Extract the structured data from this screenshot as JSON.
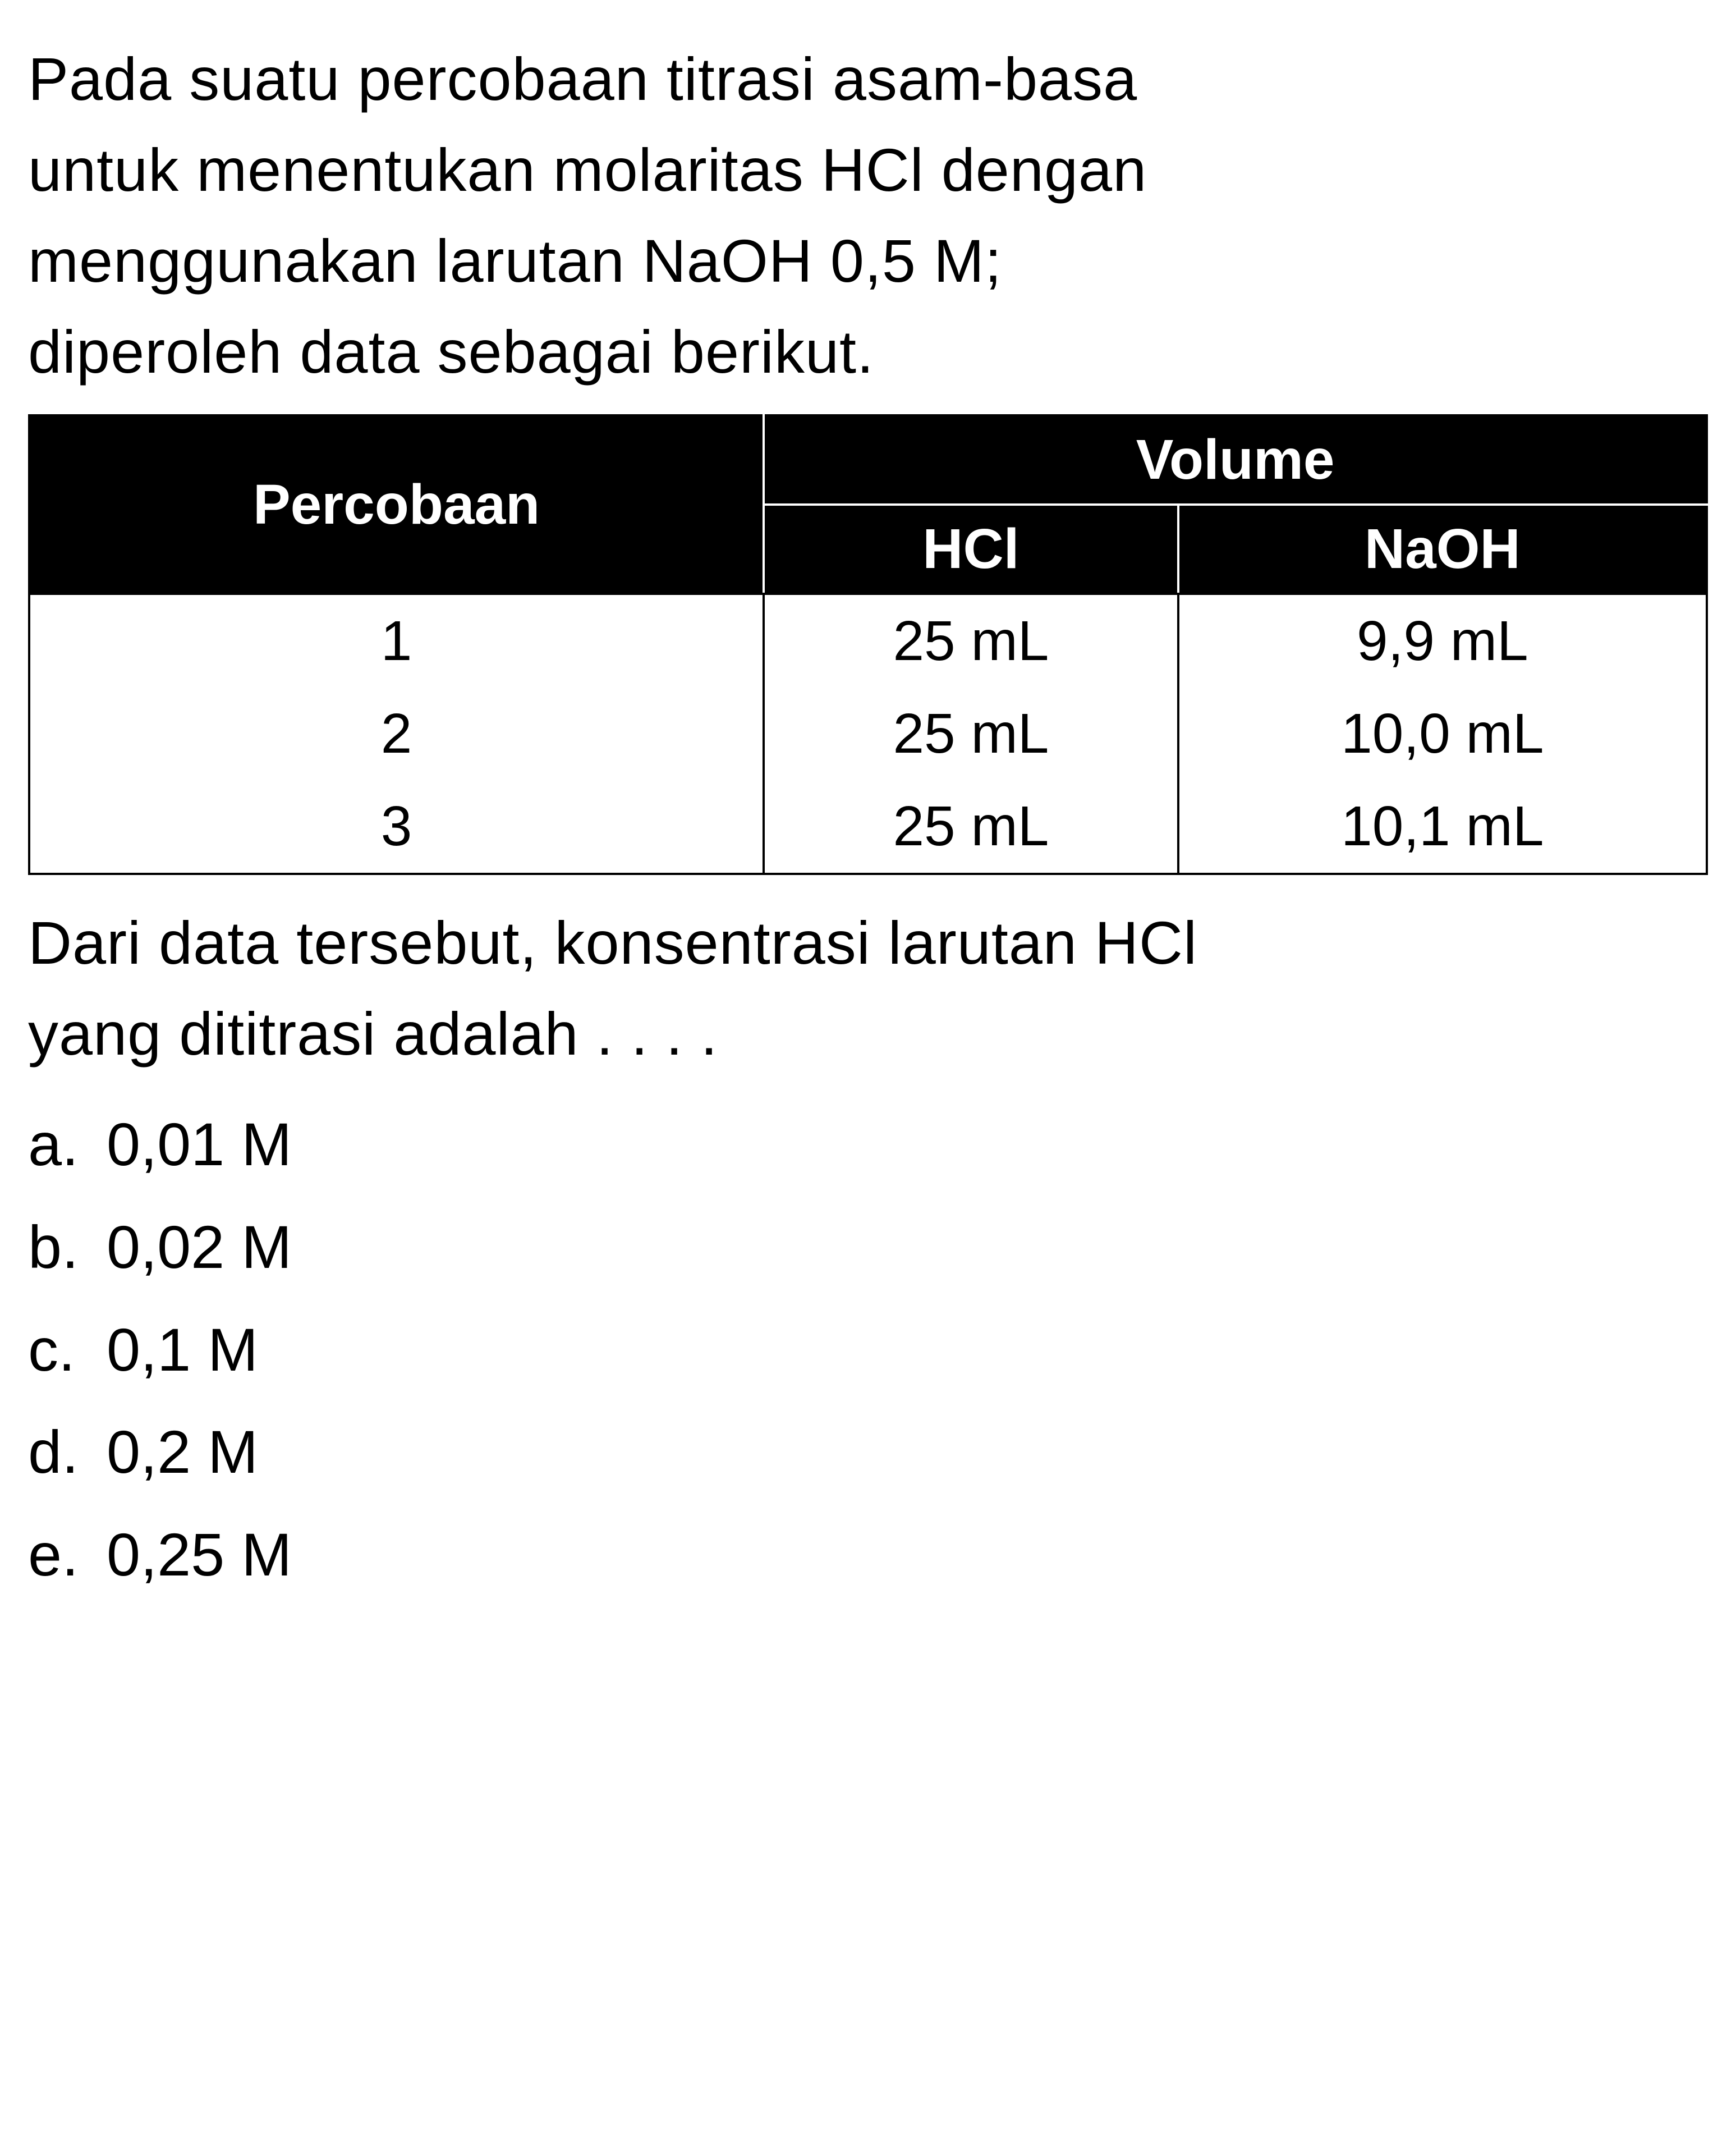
{
  "question": {
    "line1": "Pada suatu percobaan titrasi asam-basa",
    "line2": "untuk menentukan molaritas HCl dengan",
    "line3": "menggunakan larutan NaOH 0,5 M;",
    "line4": "diperoleh data sebagai berikut."
  },
  "table": {
    "header_percobaan": "Percobaan",
    "header_volume": "Volume",
    "header_hcl": "HCl",
    "header_naoh": "NaOH",
    "rows": [
      {
        "num": "1",
        "hcl": "25 mL",
        "naoh": "9,9 mL"
      },
      {
        "num": "2",
        "hcl": "25 mL",
        "naoh": "10,0 mL"
      },
      {
        "num": "3",
        "hcl": "25 mL",
        "naoh": "10,1 mL"
      }
    ],
    "header_bg": "#000000",
    "header_fg": "#ffffff",
    "border_color": "#000000",
    "cell_bg": "#ffffff"
  },
  "after_question": {
    "line1": "Dari data tersebut, konsentrasi larutan HCl",
    "line2": "yang dititrasi adalah . . . ."
  },
  "options": [
    {
      "letter": "a.",
      "value": "0,01 M"
    },
    {
      "letter": "b.",
      "value": "0,02 M"
    },
    {
      "letter": "c.",
      "value": "0,1 M"
    },
    {
      "letter": "d.",
      "value": "0,2 M"
    },
    {
      "letter": "e.",
      "value": "0,25 M"
    }
  ],
  "style": {
    "background": "#ffffff",
    "text_color": "#000000",
    "body_fontsize": 108,
    "table_fontsize": 100
  }
}
